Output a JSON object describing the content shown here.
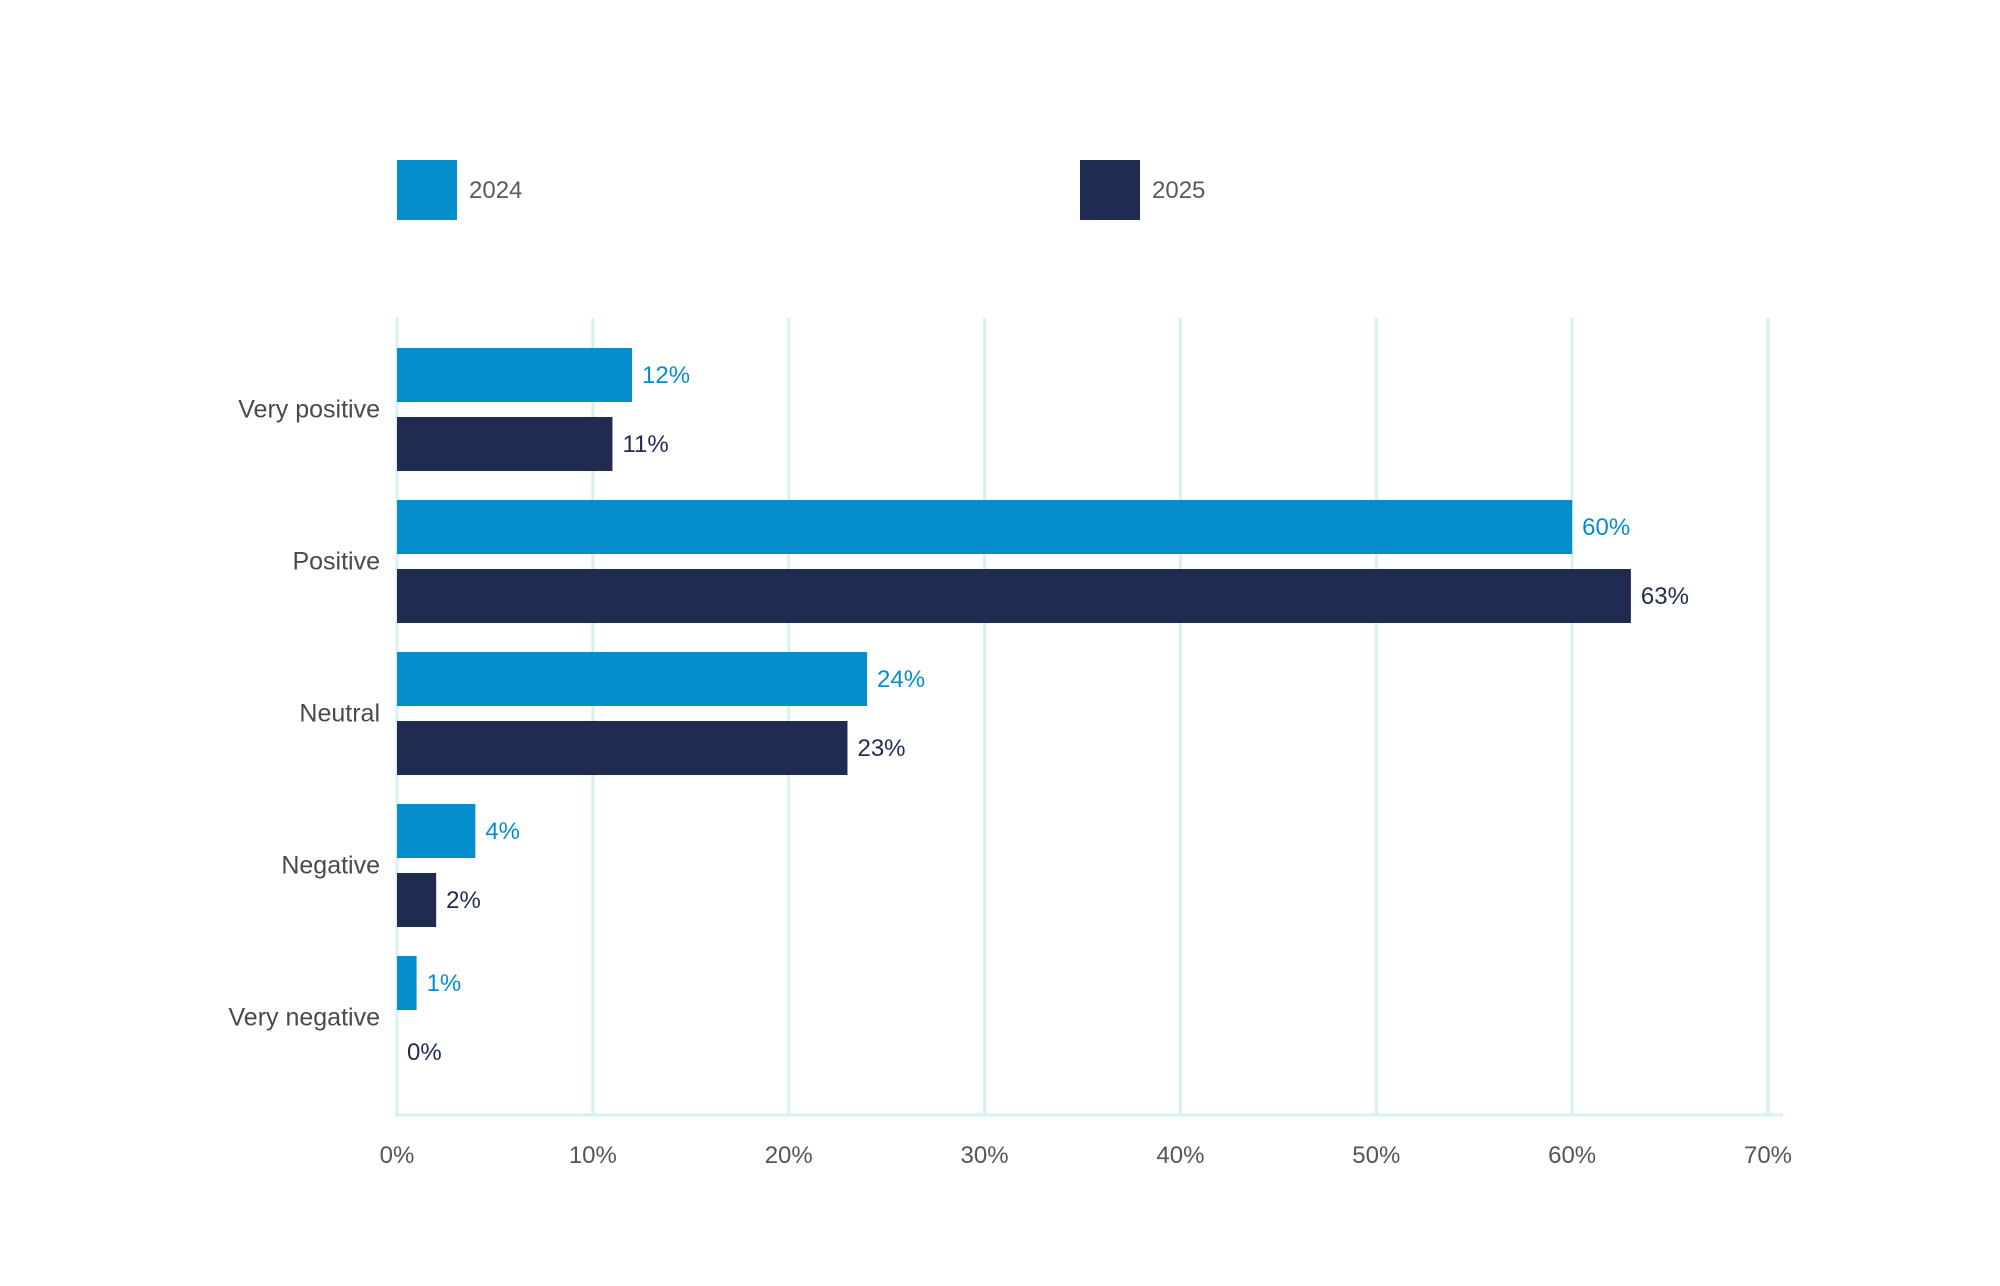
{
  "chart_data": {
    "type": "bar",
    "orientation": "horizontal",
    "categories": [
      "Very positive",
      "Positive",
      "Neutral",
      "Negative",
      "Very negative"
    ],
    "series": [
      {
        "name": "2024",
        "values": [
          12,
          60,
          24,
          4,
          1
        ],
        "color": "#058ecb",
        "value_labels": [
          "12%",
          "60%",
          "24%",
          "4%",
          "1%"
        ]
      },
      {
        "name": "2025",
        "values": [
          11,
          63,
          23,
          2,
          0
        ],
        "color": "#1f2b50",
        "value_labels": [
          "11%",
          "63%",
          "23%",
          "2%",
          "0%"
        ]
      }
    ],
    "xlim": [
      0,
      70
    ],
    "x_ticks": [
      0,
      10,
      20,
      30,
      40,
      50,
      60,
      70
    ],
    "x_tick_labels": [
      "0%",
      "10%",
      "20%",
      "30%",
      "40%",
      "50%",
      "60%",
      "70%"
    ],
    "grid": "vertical",
    "grid_color": "#d6f1f4",
    "legend_position": "top",
    "title": "",
    "xlabel": "",
    "ylabel": ""
  }
}
